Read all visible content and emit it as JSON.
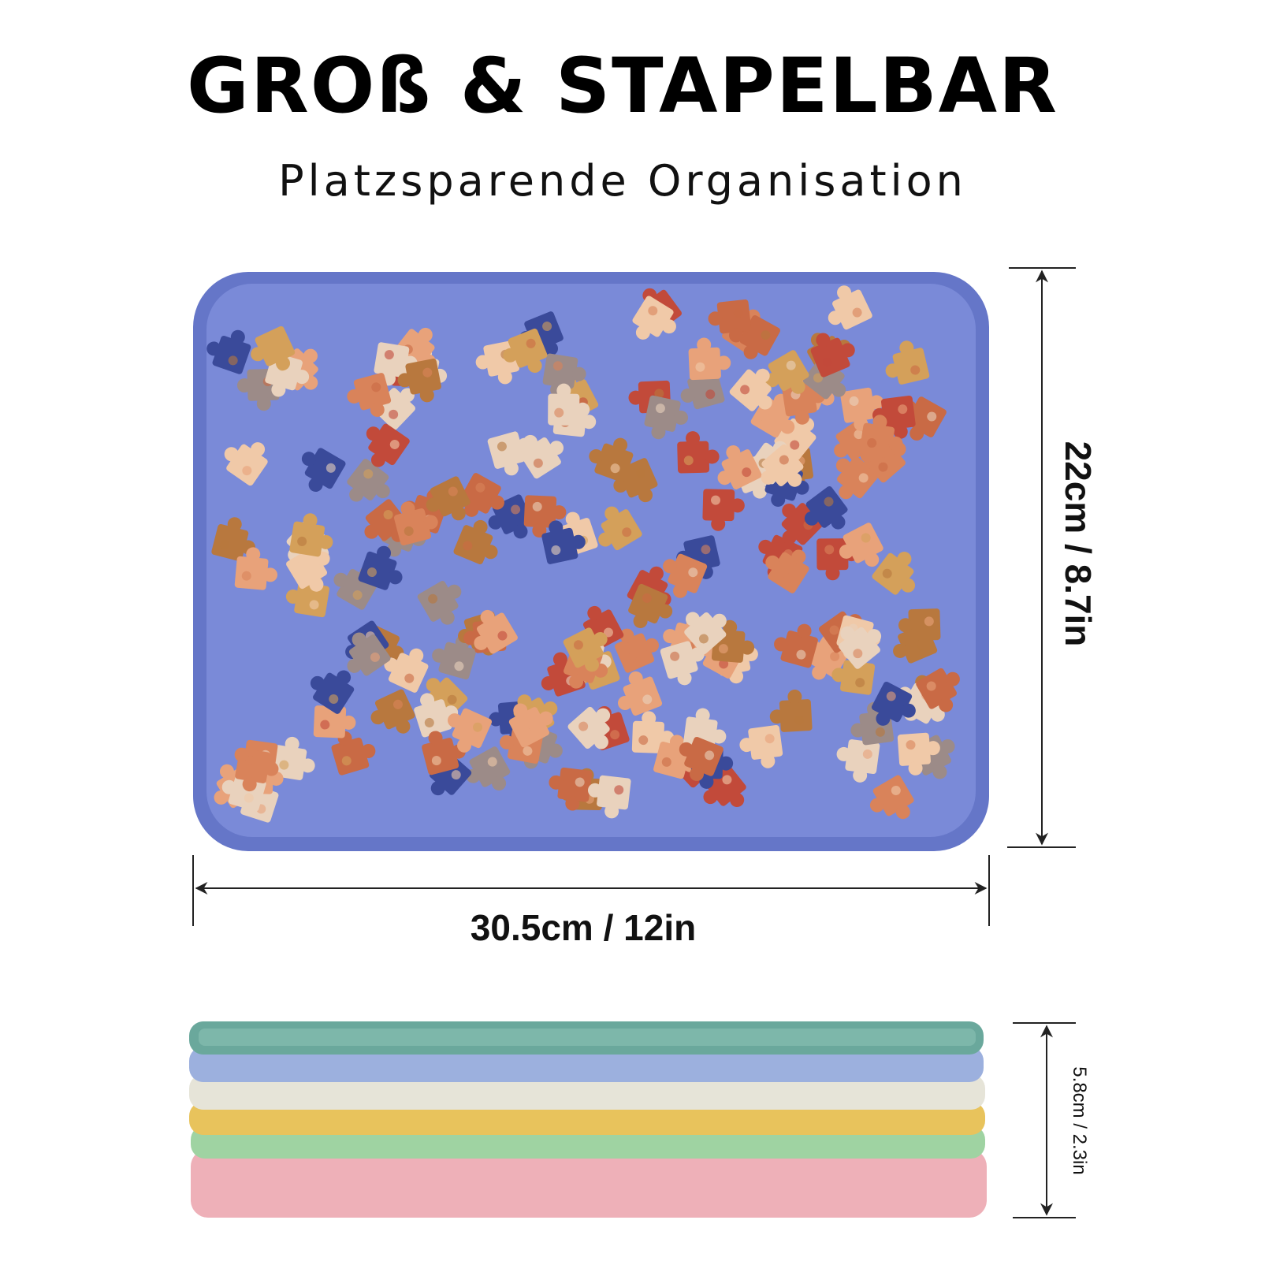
{
  "header": {
    "title": "GROß & STAPELBAR",
    "subtitle": "Platzsparende Organisation"
  },
  "dimensions": {
    "height": "22cm / 8.7in",
    "width": "30.5cm / 12in",
    "stack_height": "5.8cm / 2.3in"
  }
}
